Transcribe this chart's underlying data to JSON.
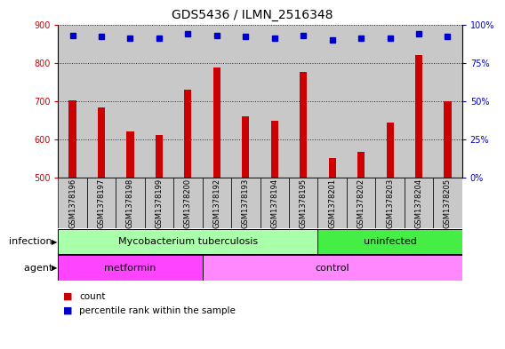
{
  "title": "GDS5436 / ILMN_2516348",
  "samples": [
    "GSM1378196",
    "GSM1378197",
    "GSM1378198",
    "GSM1378199",
    "GSM1378200",
    "GSM1378192",
    "GSM1378193",
    "GSM1378194",
    "GSM1378195",
    "GSM1378201",
    "GSM1378202",
    "GSM1378203",
    "GSM1378204",
    "GSM1378205"
  ],
  "counts": [
    703,
    683,
    622,
    612,
    730,
    787,
    660,
    648,
    776,
    553,
    568,
    644,
    820,
    700
  ],
  "percentiles": [
    93,
    92,
    91,
    91,
    94,
    93,
    92,
    91,
    93,
    90,
    91,
    91,
    94,
    92
  ],
  "ylim_left": [
    500,
    900
  ],
  "yticks_left": [
    500,
    600,
    700,
    800,
    900
  ],
  "ylim_right": [
    0,
    100
  ],
  "yticks_right": [
    0,
    25,
    50,
    75,
    100
  ],
  "bar_color": "#cc0000",
  "dot_color": "#0000cc",
  "bar_width": 0.25,
  "infection_groups": [
    {
      "label": "Mycobacterium tuberculosis",
      "start": 0,
      "end": 8,
      "color": "#aaffaa"
    },
    {
      "label": "uninfected",
      "start": 9,
      "end": 13,
      "color": "#44ee44"
    }
  ],
  "agent_groups": [
    {
      "label": "metformin",
      "start": 0,
      "end": 4,
      "color": "#ff44ff"
    },
    {
      "label": "control",
      "start": 5,
      "end": 13,
      "color": "#ff88ff"
    }
  ],
  "infection_label": "infection",
  "agent_label": "agent",
  "legend_count_label": "count",
  "legend_percentile_label": "percentile rank within the sample",
  "bar_col_color": "#c8c8c8",
  "title_fontsize": 10,
  "tick_fontsize": 7,
  "annot_fontsize": 8,
  "legend_fontsize": 7.5
}
